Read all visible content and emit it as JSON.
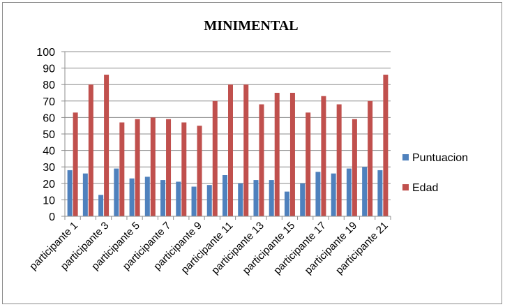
{
  "chart_data": {
    "type": "bar",
    "title": "MINIMENTAL",
    "xlabel": "",
    "ylabel": "",
    "ylim": [
      0,
      100
    ],
    "yticks": [
      0,
      10,
      20,
      30,
      40,
      50,
      60,
      70,
      80,
      90,
      100
    ],
    "grid": "horizontal",
    "legend": "right",
    "categories": [
      "participante 1",
      "participante 2",
      "participante 3",
      "participante 4",
      "participante 5",
      "participante 6",
      "participante 7",
      "participante 8",
      "participante 9",
      "participante 10",
      "participante 11",
      "participante 12",
      "participante 13",
      "participante 14",
      "participante 15",
      "participante 16",
      "participante 17",
      "participante 18",
      "participante 19",
      "participante 20",
      "participante 21"
    ],
    "visible_tick_labels": [
      "participante 1",
      "participante 3",
      "participante 5",
      "participante 7",
      "participante 9",
      "participante 11",
      "participante 13",
      "participante 15",
      "participante 17",
      "participante 19",
      "participante 21"
    ],
    "series": [
      {
        "name": "Puntuacion",
        "color": "#4f81bd",
        "values": [
          28,
          26,
          13,
          29,
          23,
          24,
          22,
          21,
          18,
          19,
          25,
          20,
          22,
          22,
          15,
          20,
          27,
          26,
          29,
          30,
          28
        ]
      },
      {
        "name": "Edad",
        "color": "#c0504d",
        "values": [
          63,
          80,
          86,
          57,
          59,
          60,
          59,
          57,
          55,
          70,
          80,
          80,
          68,
          75,
          75,
          63,
          73,
          68,
          59,
          70,
          86
        ]
      }
    ]
  }
}
